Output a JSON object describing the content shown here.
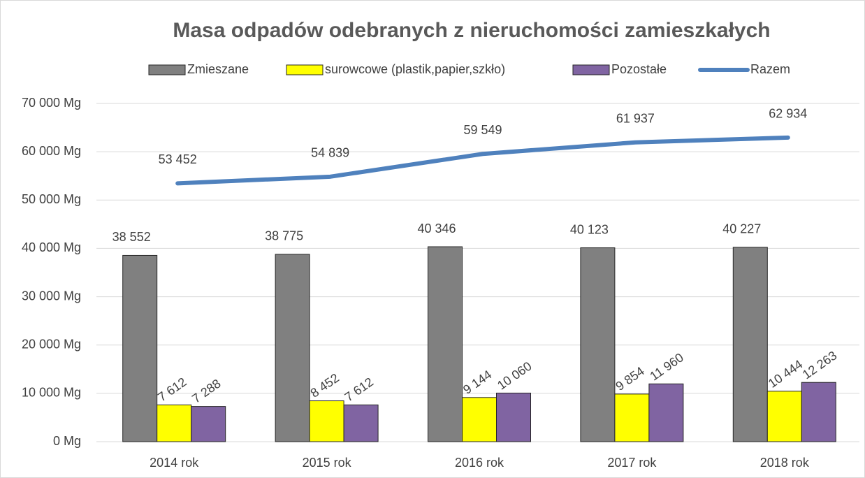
{
  "chart_data": {
    "type": "bar",
    "title": "Masa odpadów odebranych z nieruchomości zamieszkałych",
    "categories": [
      "2014 rok",
      "2015 rok",
      "2016 rok",
      "2017 rok",
      "2018 rok"
    ],
    "series": [
      {
        "name": "Zmieszane",
        "color": "#808080",
        "values": [
          38552,
          38775,
          40346,
          40123,
          40227
        ],
        "value_labels": [
          "38 552",
          "38 775",
          "40 346",
          "40 123",
          "40 227"
        ]
      },
      {
        "name": "surowcowe (plastik,papier,szkło)",
        "color": "#ffff00",
        "values": [
          7612,
          8452,
          9144,
          9854,
          10444
        ],
        "value_labels": [
          "7 612",
          "8 452",
          "9 144",
          "9 854",
          "10 444"
        ]
      },
      {
        "name": "Pozostałe",
        "color": "#8064a2",
        "values": [
          7288,
          7612,
          10060,
          11960,
          12263
        ],
        "value_labels": [
          "7 288",
          "7 612",
          "10 060",
          "11 960",
          "12 263"
        ]
      },
      {
        "name": "Razem",
        "color": "#4f81bd",
        "type": "line",
        "values": [
          53452,
          54839,
          59549,
          61937,
          62934
        ],
        "value_labels": [
          "53 452",
          "54 839",
          "59 549",
          "61 937",
          "62 934"
        ]
      }
    ],
    "ylim": [
      0,
      70000
    ],
    "yticks": [
      {
        "value": 0,
        "label": "0 Mg"
      },
      {
        "value": 10000,
        "label": "10 000 Mg"
      },
      {
        "value": 20000,
        "label": "20 000 Mg"
      },
      {
        "value": 30000,
        "label": "30 000 Mg"
      },
      {
        "value": 40000,
        "label": "40 000 Mg"
      },
      {
        "value": 50000,
        "label": "50 000 Mg"
      },
      {
        "value": 60000,
        "label": "60 000 Mg"
      },
      {
        "value": 70000,
        "label": "70 000 Mg"
      }
    ],
    "grid": true,
    "legend": "top"
  }
}
